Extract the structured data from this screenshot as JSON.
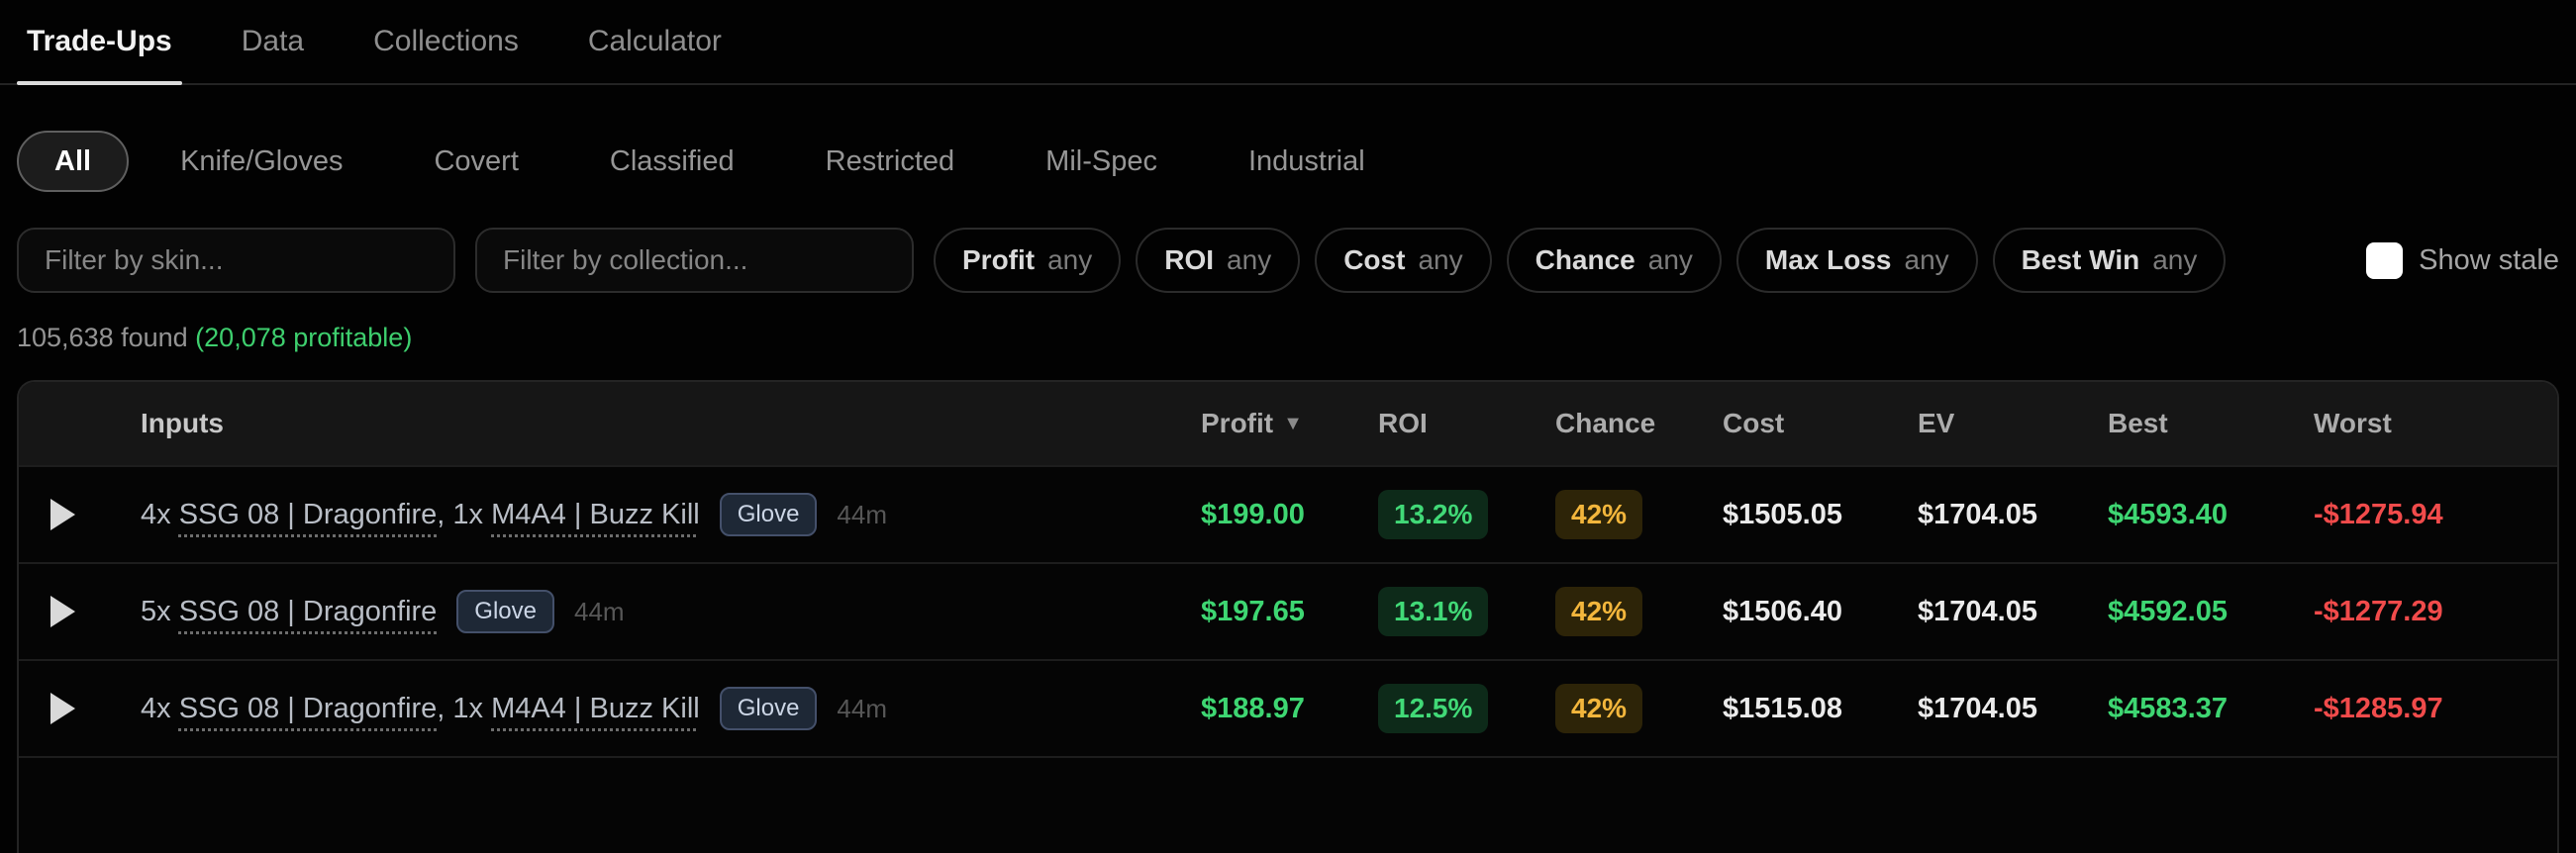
{
  "nav": {
    "tabs": [
      {
        "label": "Trade-Ups",
        "active": true
      },
      {
        "label": "Data",
        "active": false
      },
      {
        "label": "Collections",
        "active": false
      },
      {
        "label": "Calculator",
        "active": false
      }
    ]
  },
  "categories": {
    "active": "All",
    "items": [
      "All",
      "Knife/Gloves",
      "Covert",
      "Classified",
      "Restricted",
      "Mil-Spec",
      "Industrial"
    ]
  },
  "filters": {
    "skin_placeholder": "Filter by skin...",
    "collection_placeholder": "Filter by collection...",
    "pills": [
      {
        "label": "Profit",
        "value": "any"
      },
      {
        "label": "ROI",
        "value": "any"
      },
      {
        "label": "Cost",
        "value": "any"
      },
      {
        "label": "Chance",
        "value": "any"
      },
      {
        "label": "Max Loss",
        "value": "any"
      },
      {
        "label": "Best Win",
        "value": "any"
      }
    ],
    "show_stale_label": "Show stale",
    "show_stale_checked": false
  },
  "results": {
    "found": "105,638 found ",
    "profitable": "(20,078 profitable)"
  },
  "table": {
    "columns": [
      "Inputs",
      "Profit",
      "ROI",
      "Chance",
      "Cost",
      "EV",
      "Best",
      "Worst"
    ],
    "sort_column": "Profit",
    "sort_arrow": "▼",
    "rows": [
      {
        "input_parts": [
          {
            "t": "4x "
          },
          {
            "t": "SSG 08 | Dragonfire",
            "link": true
          },
          {
            "t": ", 1x "
          },
          {
            "t": "M4A4 | Buzz Kill",
            "link": true
          }
        ],
        "badge": "Glove",
        "age": "44m",
        "profit": "$199.00",
        "roi": "13.2%",
        "chance": "42%",
        "cost": "$1505.05",
        "ev": "$1704.05",
        "best": "$4593.40",
        "worst": "-$1275.94"
      },
      {
        "input_parts": [
          {
            "t": "5x "
          },
          {
            "t": "SSG 08 | Dragonfire",
            "link": true
          }
        ],
        "badge": "Glove",
        "age": "44m",
        "profit": "$197.65",
        "roi": "13.1%",
        "chance": "42%",
        "cost": "$1506.40",
        "ev": "$1704.05",
        "best": "$4592.05",
        "worst": "-$1277.29"
      },
      {
        "input_parts": [
          {
            "t": "4x "
          },
          {
            "t": "SSG 08 | Dragonfire",
            "link": true
          },
          {
            "t": ", 1x "
          },
          {
            "t": "M4A4 | Buzz Kill",
            "link": true
          }
        ],
        "badge": "Glove",
        "age": "44m",
        "profit": "$188.97",
        "roi": "12.5%",
        "chance": "42%",
        "cost": "$1515.08",
        "ev": "$1704.05",
        "best": "$4583.37",
        "worst": "-$1285.97"
      }
    ]
  },
  "colors": {
    "profit_green": "#3ed672",
    "loss_red": "#f14b4b",
    "chance_amber": "#f3b63c",
    "roi_badge_bg": "#0d2a19",
    "chance_badge_bg": "#2d2408",
    "glove_badge_bg": "#1e2836",
    "glove_badge_border": "#44506a",
    "glove_badge_text": "#ccd6e6",
    "found_green": "#3ecf6e"
  }
}
